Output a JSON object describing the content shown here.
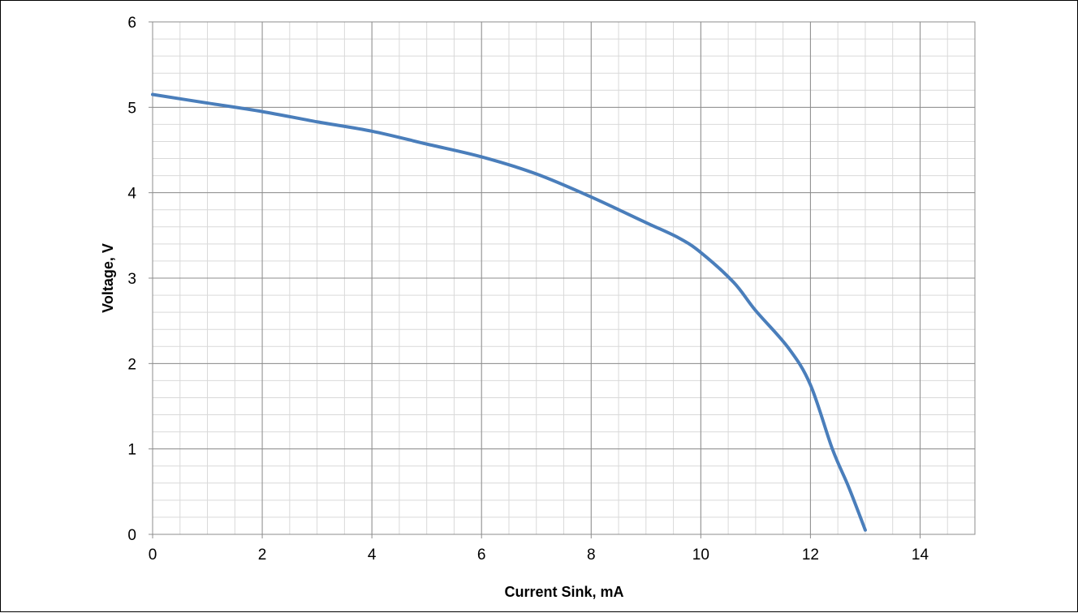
{
  "chart_data": {
    "type": "line",
    "title": "",
    "xlabel": "Current Sink, mA",
    "ylabel": "Voltage, V",
    "xlim": [
      0,
      15
    ],
    "ylim": [
      0,
      6
    ],
    "x_ticks": [
      0,
      2,
      4,
      6,
      8,
      10,
      12,
      14
    ],
    "y_ticks": [
      0,
      1,
      2,
      3,
      4,
      5,
      6
    ],
    "x_tick_labels": [
      "0",
      "2",
      "4",
      "6",
      "8",
      "10",
      "12",
      "14"
    ],
    "y_tick_labels": [
      "0",
      "1",
      "2",
      "3",
      "4",
      "5",
      "6"
    ],
    "major_grid": true,
    "minor_grid": true,
    "minor_grid_step_x": 0.5,
    "minor_grid_step_y": 0.2,
    "legend": "none",
    "colors": {
      "series": "#4a7ebb",
      "major_grid": "#8c8c8c",
      "minor_grid": "#d9d9d9"
    },
    "series": [
      {
        "x": [
          0,
          1,
          2,
          3,
          4,
          5,
          6,
          7,
          8,
          9,
          9.6,
          10,
          10.6,
          11,
          11.6,
          12,
          12.4,
          12.7,
          13
        ],
        "y": [
          5.15,
          5.05,
          4.95,
          4.83,
          4.72,
          4.57,
          4.42,
          4.22,
          3.95,
          3.65,
          3.47,
          3.3,
          2.95,
          2.62,
          2.18,
          1.75,
          1.0,
          0.55,
          0.05
        ]
      }
    ]
  }
}
